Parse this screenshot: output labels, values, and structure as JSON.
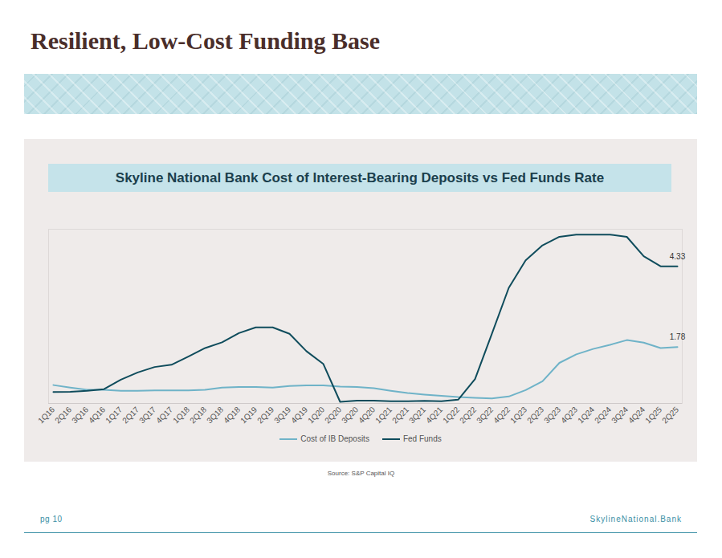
{
  "header": {
    "title": "Resilient, Low-Cost Funding Base"
  },
  "chart_data": {
    "type": "line",
    "title": "Skyline National Bank Cost of Interest-Bearing Deposits vs Fed Funds Rate",
    "categories": [
      "1Q16",
      "2Q16",
      "3Q16",
      "4Q16",
      "1Q17",
      "2Q17",
      "3Q17",
      "4Q17",
      "1Q18",
      "2Q18",
      "3Q18",
      "4Q18",
      "1Q19",
      "2Q19",
      "3Q19",
      "4Q19",
      "1Q20",
      "2Q20",
      "3Q20",
      "4Q20",
      "1Q21",
      "2Q21",
      "3Q21",
      "4Q21",
      "1Q22",
      "2Q22",
      "3Q22",
      "4Q22",
      "1Q23",
      "2Q23",
      "3Q23",
      "4Q23",
      "1Q24",
      "2Q24",
      "3Q24",
      "4Q24",
      "1Q25",
      "2Q25"
    ],
    "series": [
      {
        "name": "Cost of IB Deposits",
        "color": "#6fb3c8",
        "values": [
          0.58,
          0.5,
          0.43,
          0.43,
          0.4,
          0.4,
          0.41,
          0.41,
          0.41,
          0.43,
          0.5,
          0.52,
          0.52,
          0.5,
          0.55,
          0.57,
          0.57,
          0.53,
          0.52,
          0.48,
          0.4,
          0.33,
          0.28,
          0.24,
          0.2,
          0.18,
          0.16,
          0.22,
          0.42,
          0.7,
          1.28,
          1.55,
          1.72,
          1.85,
          2.0,
          1.92,
          1.75,
          1.78
        ],
        "value_labels": [
          null,
          null,
          null,
          null,
          null,
          null,
          null,
          null,
          null,
          null,
          null,
          null,
          null,
          null,
          null,
          null,
          null,
          null,
          null,
          null,
          null,
          null,
          null,
          null,
          null,
          null,
          null,
          null,
          null,
          null,
          null,
          null,
          null,
          null,
          null,
          null,
          null,
          "1.78"
        ]
      },
      {
        "name": "Fed Funds",
        "color": "#0f4c5c",
        "values": [
          0.36,
          0.37,
          0.4,
          0.45,
          0.75,
          0.98,
          1.15,
          1.22,
          1.48,
          1.75,
          1.93,
          2.22,
          2.4,
          2.4,
          2.2,
          1.65,
          1.25,
          0.05,
          0.09,
          0.09,
          0.07,
          0.07,
          0.08,
          0.07,
          0.12,
          0.77,
          2.2,
          3.65,
          4.52,
          4.99,
          5.26,
          5.33,
          5.33,
          5.33,
          5.26,
          4.65,
          4.33,
          4.33
        ],
        "value_labels": [
          null,
          null,
          null,
          null,
          null,
          null,
          null,
          null,
          null,
          null,
          null,
          null,
          null,
          null,
          null,
          null,
          null,
          null,
          null,
          null,
          null,
          null,
          null,
          null,
          null,
          null,
          null,
          null,
          null,
          null,
          null,
          null,
          null,
          null,
          null,
          null,
          null,
          "4.33"
        ]
      }
    ],
    "ylim": [
      0,
      5.5
    ],
    "grid": false,
    "tick_labels": "x",
    "legend": "bottom",
    "source": "Source: S&P Capital IQ"
  },
  "footer": {
    "page": "pg 10",
    "site": "SkylineNational.Bank"
  }
}
